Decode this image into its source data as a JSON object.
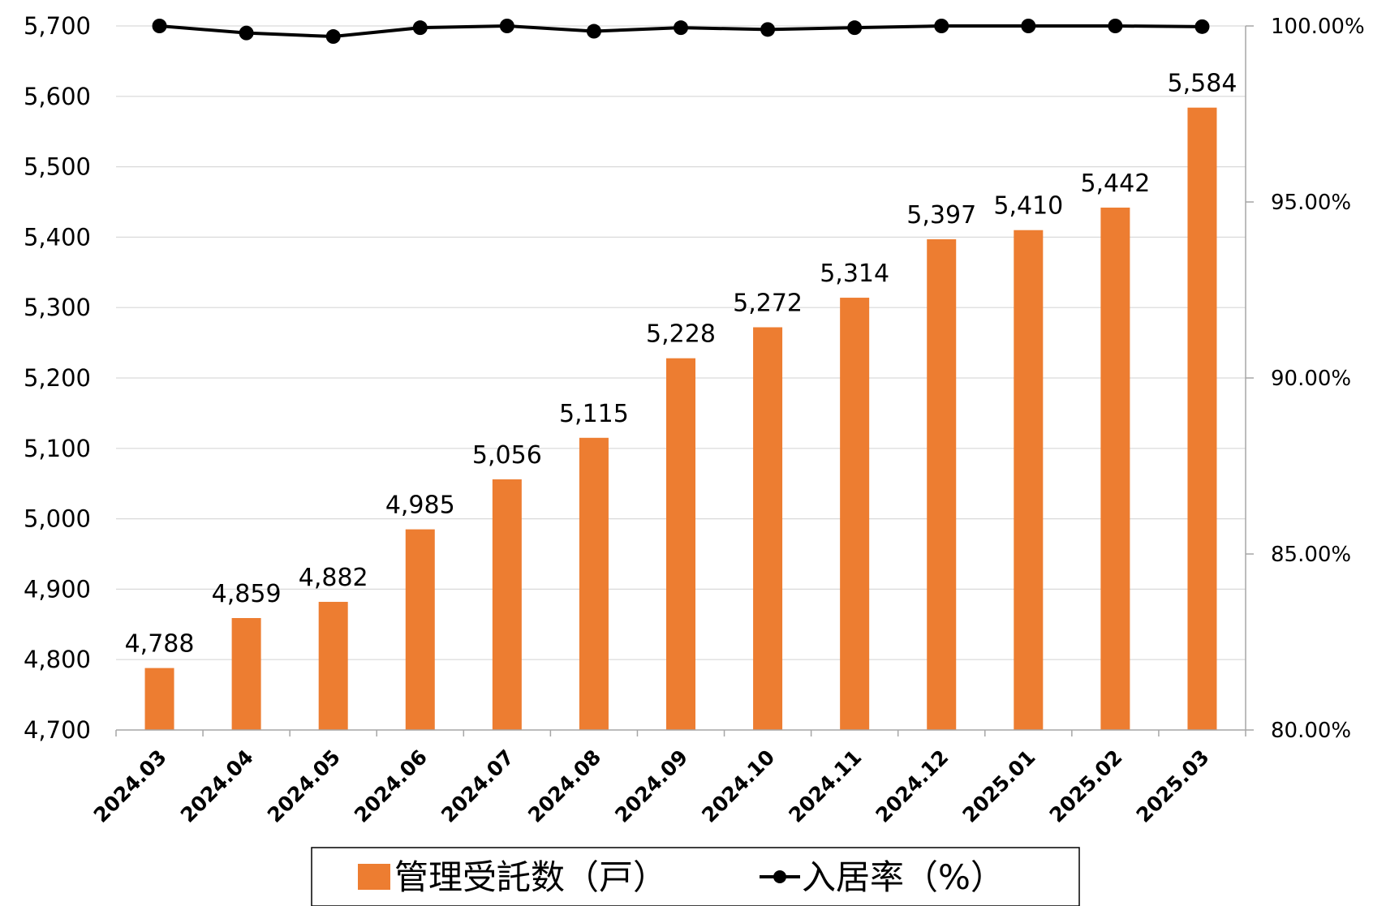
{
  "chart_data": {
    "type": "bar+line",
    "categories": [
      "2024.03",
      "2024.04",
      "2024.05",
      "2024.06",
      "2024.07",
      "2024.08",
      "2024.09",
      "2024.10",
      "2024.11",
      "2024.12",
      "2025.01",
      "2025.02",
      "2025.03"
    ],
    "series": [
      {
        "name": "管理受託数（戸）",
        "type": "bar",
        "axis": "left",
        "color": "#ED7D31",
        "values": [
          4788,
          4859,
          4882,
          4985,
          5056,
          5115,
          5228,
          5272,
          5314,
          5397,
          5410,
          5442,
          5584
        ],
        "labels": [
          "4,788",
          "4,859",
          "4,882",
          "4,985",
          "5,056",
          "5,115",
          "5,228",
          "5,272",
          "5,314",
          "5,397",
          "5,410",
          "5,442",
          "5,584"
        ]
      },
      {
        "name": "入居率（%）",
        "type": "line",
        "axis": "right",
        "color": "#000000",
        "values": [
          100.0,
          99.8,
          99.7,
          99.95,
          100.0,
          99.85,
          99.95,
          99.9,
          99.95,
          100.0,
          100.0,
          100.0,
          99.98
        ]
      }
    ],
    "y_left": {
      "min": 4700,
      "max": 5700,
      "step": 100,
      "tick_labels": [
        "4,700",
        "4,800",
        "4,900",
        "5,000",
        "5,100",
        "5,200",
        "5,300",
        "5,400",
        "5,500",
        "5,600",
        "5,700"
      ]
    },
    "y_right": {
      "min": 80,
      "max": 100,
      "step": 5,
      "tick_labels": [
        "80.00%",
        "85.00%",
        "90.00%",
        "95.00%",
        "100.00%"
      ]
    },
    "grid": true,
    "legend": {
      "placement": "bottom-center",
      "bordered": true
    }
  }
}
